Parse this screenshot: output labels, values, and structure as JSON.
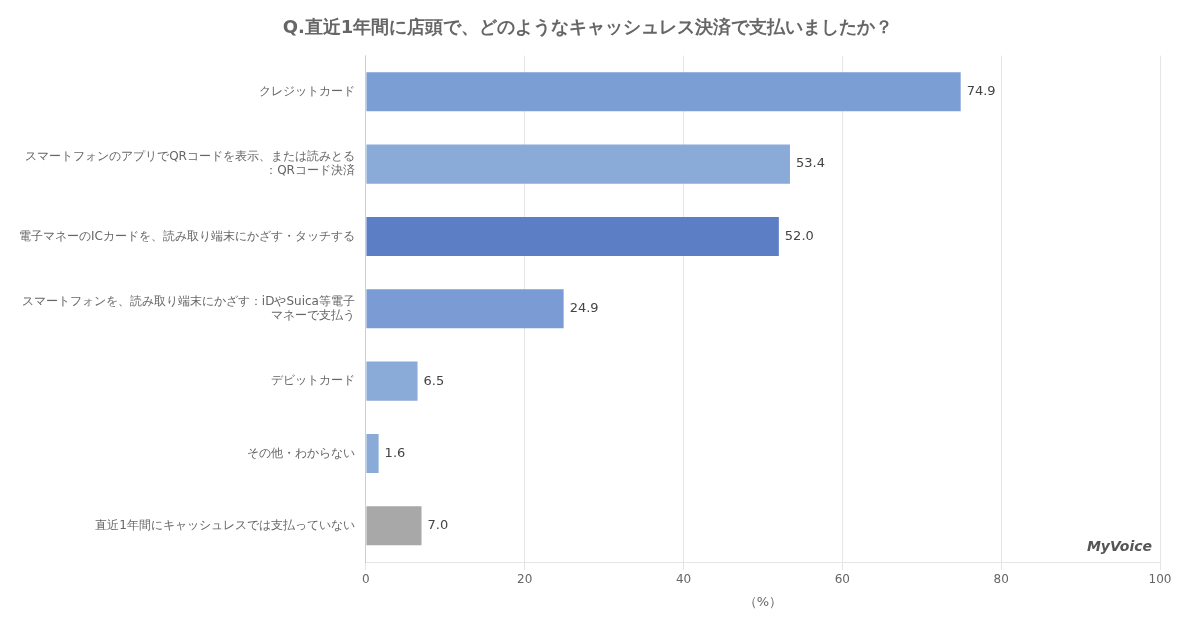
{
  "chart_data": {
    "type": "bar",
    "orientation": "horizontal",
    "title": "Q.直近1年間に店頭で、どのようなキャッシュレス決済で支払いましたか？",
    "categories": [
      "クレジットカード",
      "スマートフォンのアプリでQRコードを表示、または読みとる\n：QRコード決済",
      "電子マネーのICカードを、読み取り端末にかざす・タッチする",
      "スマートフォンを、読み取り端末にかざす：iDやSuica等電子\nマネーで支払う",
      "デビットカード",
      "その他・わからない",
      "直近1年間にキャッシュレスでは支払っていない"
    ],
    "values": [
      74.9,
      53.4,
      52.0,
      24.9,
      6.5,
      1.6,
      7.0
    ],
    "value_labels": [
      "74.9",
      "53.4",
      "52.0",
      "24.9",
      "6.5",
      "1.6",
      "7.0"
    ],
    "data_labels": true,
    "colors": [
      "#7b9fd4",
      "#8aabd8",
      "#5b7ec4",
      "#7a9bd4",
      "#8aabd8",
      "#8aabd8",
      "#a8a8a8"
    ],
    "xlabel": "（%）",
    "xlim": [
      0,
      100
    ],
    "xticks": [
      0,
      20,
      40,
      60,
      80,
      100
    ],
    "grid": true,
    "annotation": "MyVoice"
  }
}
